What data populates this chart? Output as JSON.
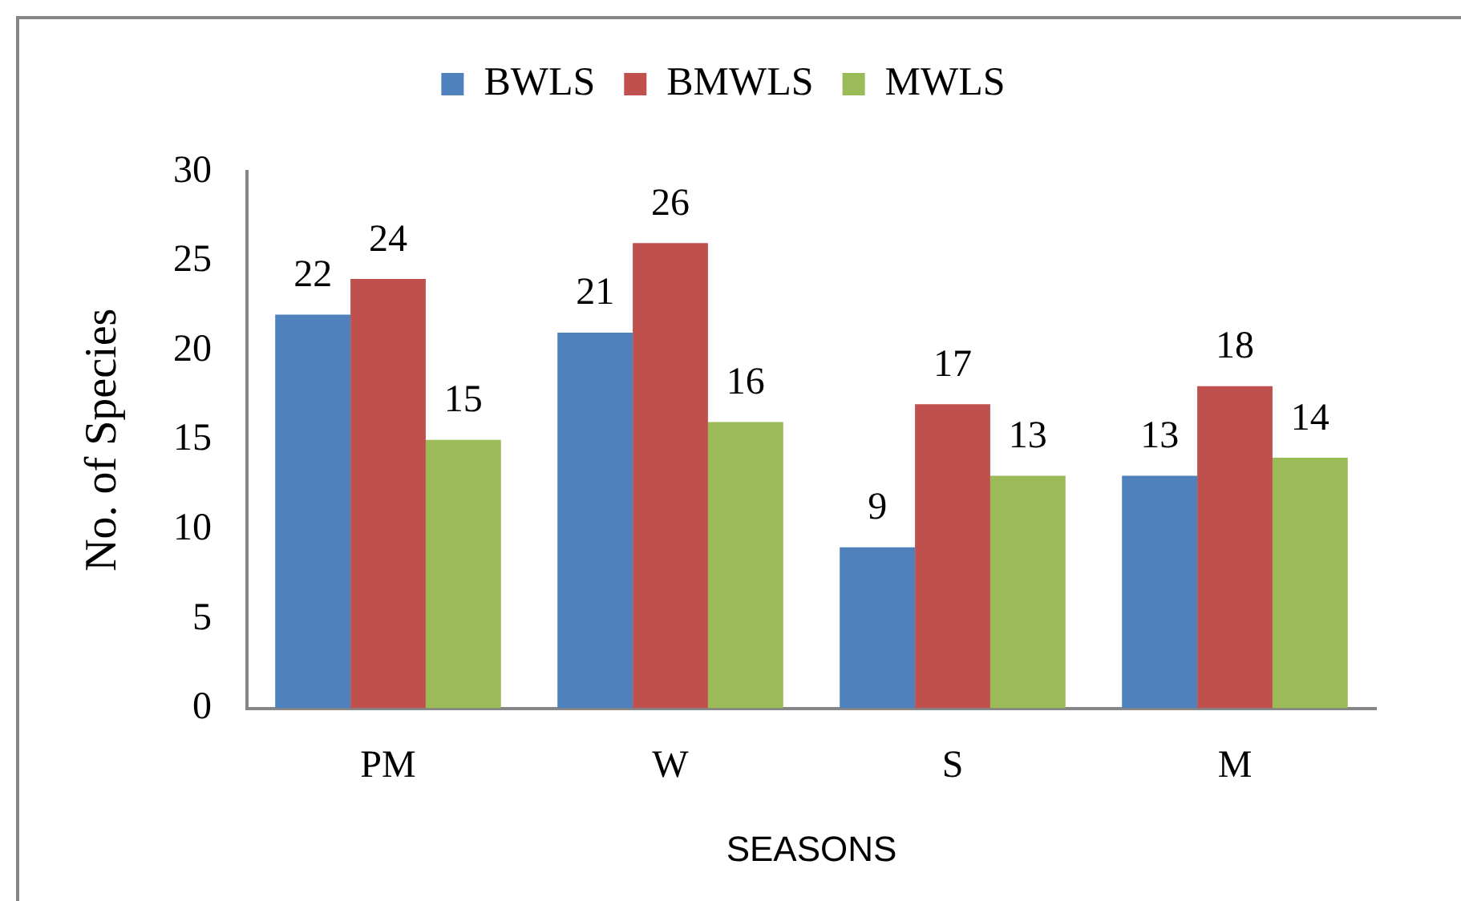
{
  "chart_data": {
    "type": "bar",
    "categories": [
      "PM",
      "W",
      "S",
      "M"
    ],
    "series": [
      {
        "name": "BWLS",
        "color": "#4f81bd",
        "values": [
          22,
          21,
          9,
          13
        ]
      },
      {
        "name": "BMWLS",
        "color": "#c0504d",
        "values": [
          24,
          26,
          17,
          18
        ]
      },
      {
        "name": "MWLS",
        "color": "#9bbb59",
        "values": [
          15,
          16,
          13,
          14
        ]
      }
    ],
    "xlabel": "SEASONS",
    "ylabel": "No. of Species",
    "ylim": [
      0,
      30
    ],
    "yticks": [
      0,
      5,
      10,
      15,
      20,
      25,
      30
    ],
    "grid": false,
    "legend": "top",
    "data_labels": true
  }
}
